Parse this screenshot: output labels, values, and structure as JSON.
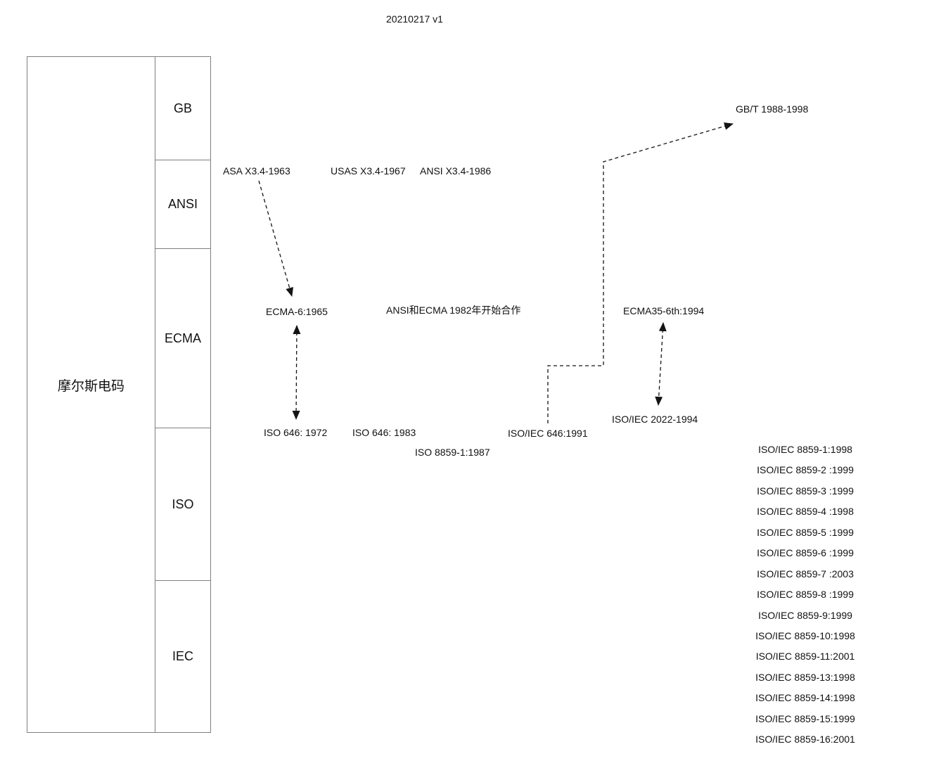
{
  "title": "20210217 v1",
  "left_panel": {
    "main_label": "摩尔斯电码",
    "org_rows": [
      {
        "label": "GB"
      },
      {
        "label": "ANSI"
      },
      {
        "label": "ECMA"
      },
      {
        "label": "ISO"
      },
      {
        "label": "IEC"
      }
    ]
  },
  "nodes": {
    "asa_x34_1963": "ASA X3.4-1963",
    "usas_x34_1967": "USAS X3.4-1967",
    "ansi_x34_1986": "ANSI X3.4-1986",
    "gbt_1988_1998": "GB/T 1988-1998",
    "ecma6_1965": "ECMA-6:1965",
    "ansi_ecma_collab": "ANSI和ECMA 1982年开始合作",
    "ecma35_6th_1994": "ECMA35-6th:1994",
    "iso646_1972": "ISO 646: 1972",
    "iso646_1983": "ISO 646: 1983",
    "isoiec646_1991": "ISO/IEC 646:1991",
    "isoiec2022_1994": "ISO/IEC 2022-1994",
    "iso8859_1_1987": "ISO 8859-1:1987"
  },
  "iso8859_series": [
    "ISO/IEC 8859-1:1998",
    "ISO/IEC 8859-2 :1999",
    "ISO/IEC 8859-3 :1999",
    "ISO/IEC 8859-4 :1998",
    "ISO/IEC 8859-5 :1999",
    "ISO/IEC 8859-6 :1999",
    "ISO/IEC 8859-7 :2003",
    "ISO/IEC 8859-8 :1999",
    "ISO/IEC 8859-9:1999",
    "ISO/IEC 8859-10:1998",
    "ISO/IEC 8859-11:2001",
    "ISO/IEC 8859-13:1998",
    "ISO/IEC 8859-14:1998",
    "ISO/IEC 8859-15:1999",
    "ISO/IEC 8859-16:2001"
  ],
  "colors": {
    "text": "#111111",
    "border": "#7f7f7f",
    "connector": "#141414",
    "background": "#ffffff"
  }
}
